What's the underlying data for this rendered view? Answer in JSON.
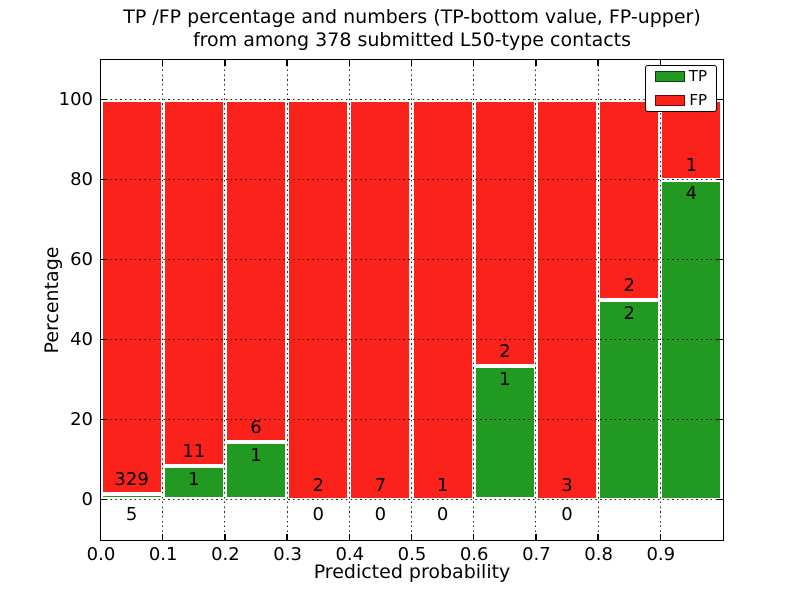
{
  "title": {
    "line1": "TP /FP percentage and numbers (TP-bottom value, FP-upper)",
    "line2": "from among 378 submitted L50-type contacts"
  },
  "axes": {
    "xlabel": "Predicted probability",
    "ylabel": "Percentage",
    "xticks": [
      "0.0",
      "0.1",
      "0.2",
      "0.3",
      "0.4",
      "0.5",
      "0.6",
      "0.7",
      "0.8",
      "0.9"
    ],
    "yticks": [
      0,
      20,
      40,
      60,
      80,
      100
    ]
  },
  "legend": {
    "position": "upper right",
    "items": [
      {
        "label": "TP",
        "color": "#229a22"
      },
      {
        "label": "FP",
        "color": "#fb221c"
      }
    ]
  },
  "colors": {
    "tp": "#229a22",
    "fp": "#fb221c",
    "bar_edge": "#ffffff",
    "grid": "#000000"
  },
  "chart_data": {
    "type": "bar",
    "stacked": true,
    "title": "TP /FP percentage and numbers (TP-bottom value, FP-upper) from among 378 submitted L50-type contacts",
    "xlabel": "Predicted probability",
    "ylabel": "Percentage",
    "total_submitted": 378,
    "bin_starts": [
      0.0,
      0.1,
      0.2,
      0.3,
      0.4,
      0.5,
      0.6,
      0.7,
      0.8,
      0.9
    ],
    "bin_width": 0.1,
    "series": [
      {
        "name": "TP",
        "counts": [
          5,
          1,
          1,
          0,
          0,
          0,
          1,
          0,
          2,
          4
        ],
        "pct": [
          1.5,
          8.3,
          14.3,
          0,
          0,
          0,
          33.3,
          0,
          50,
          80
        ]
      },
      {
        "name": "FP",
        "counts": [
          329,
          11,
          6,
          2,
          7,
          1,
          2,
          3,
          2,
          1
        ],
        "pct": [
          98.5,
          91.7,
          85.7,
          100,
          100,
          100,
          66.7,
          100,
          50,
          20
        ]
      }
    ],
    "xlim": [
      0,
      1
    ],
    "ylim": [
      -10,
      110
    ],
    "grid": true,
    "legend_position": "upper right"
  }
}
